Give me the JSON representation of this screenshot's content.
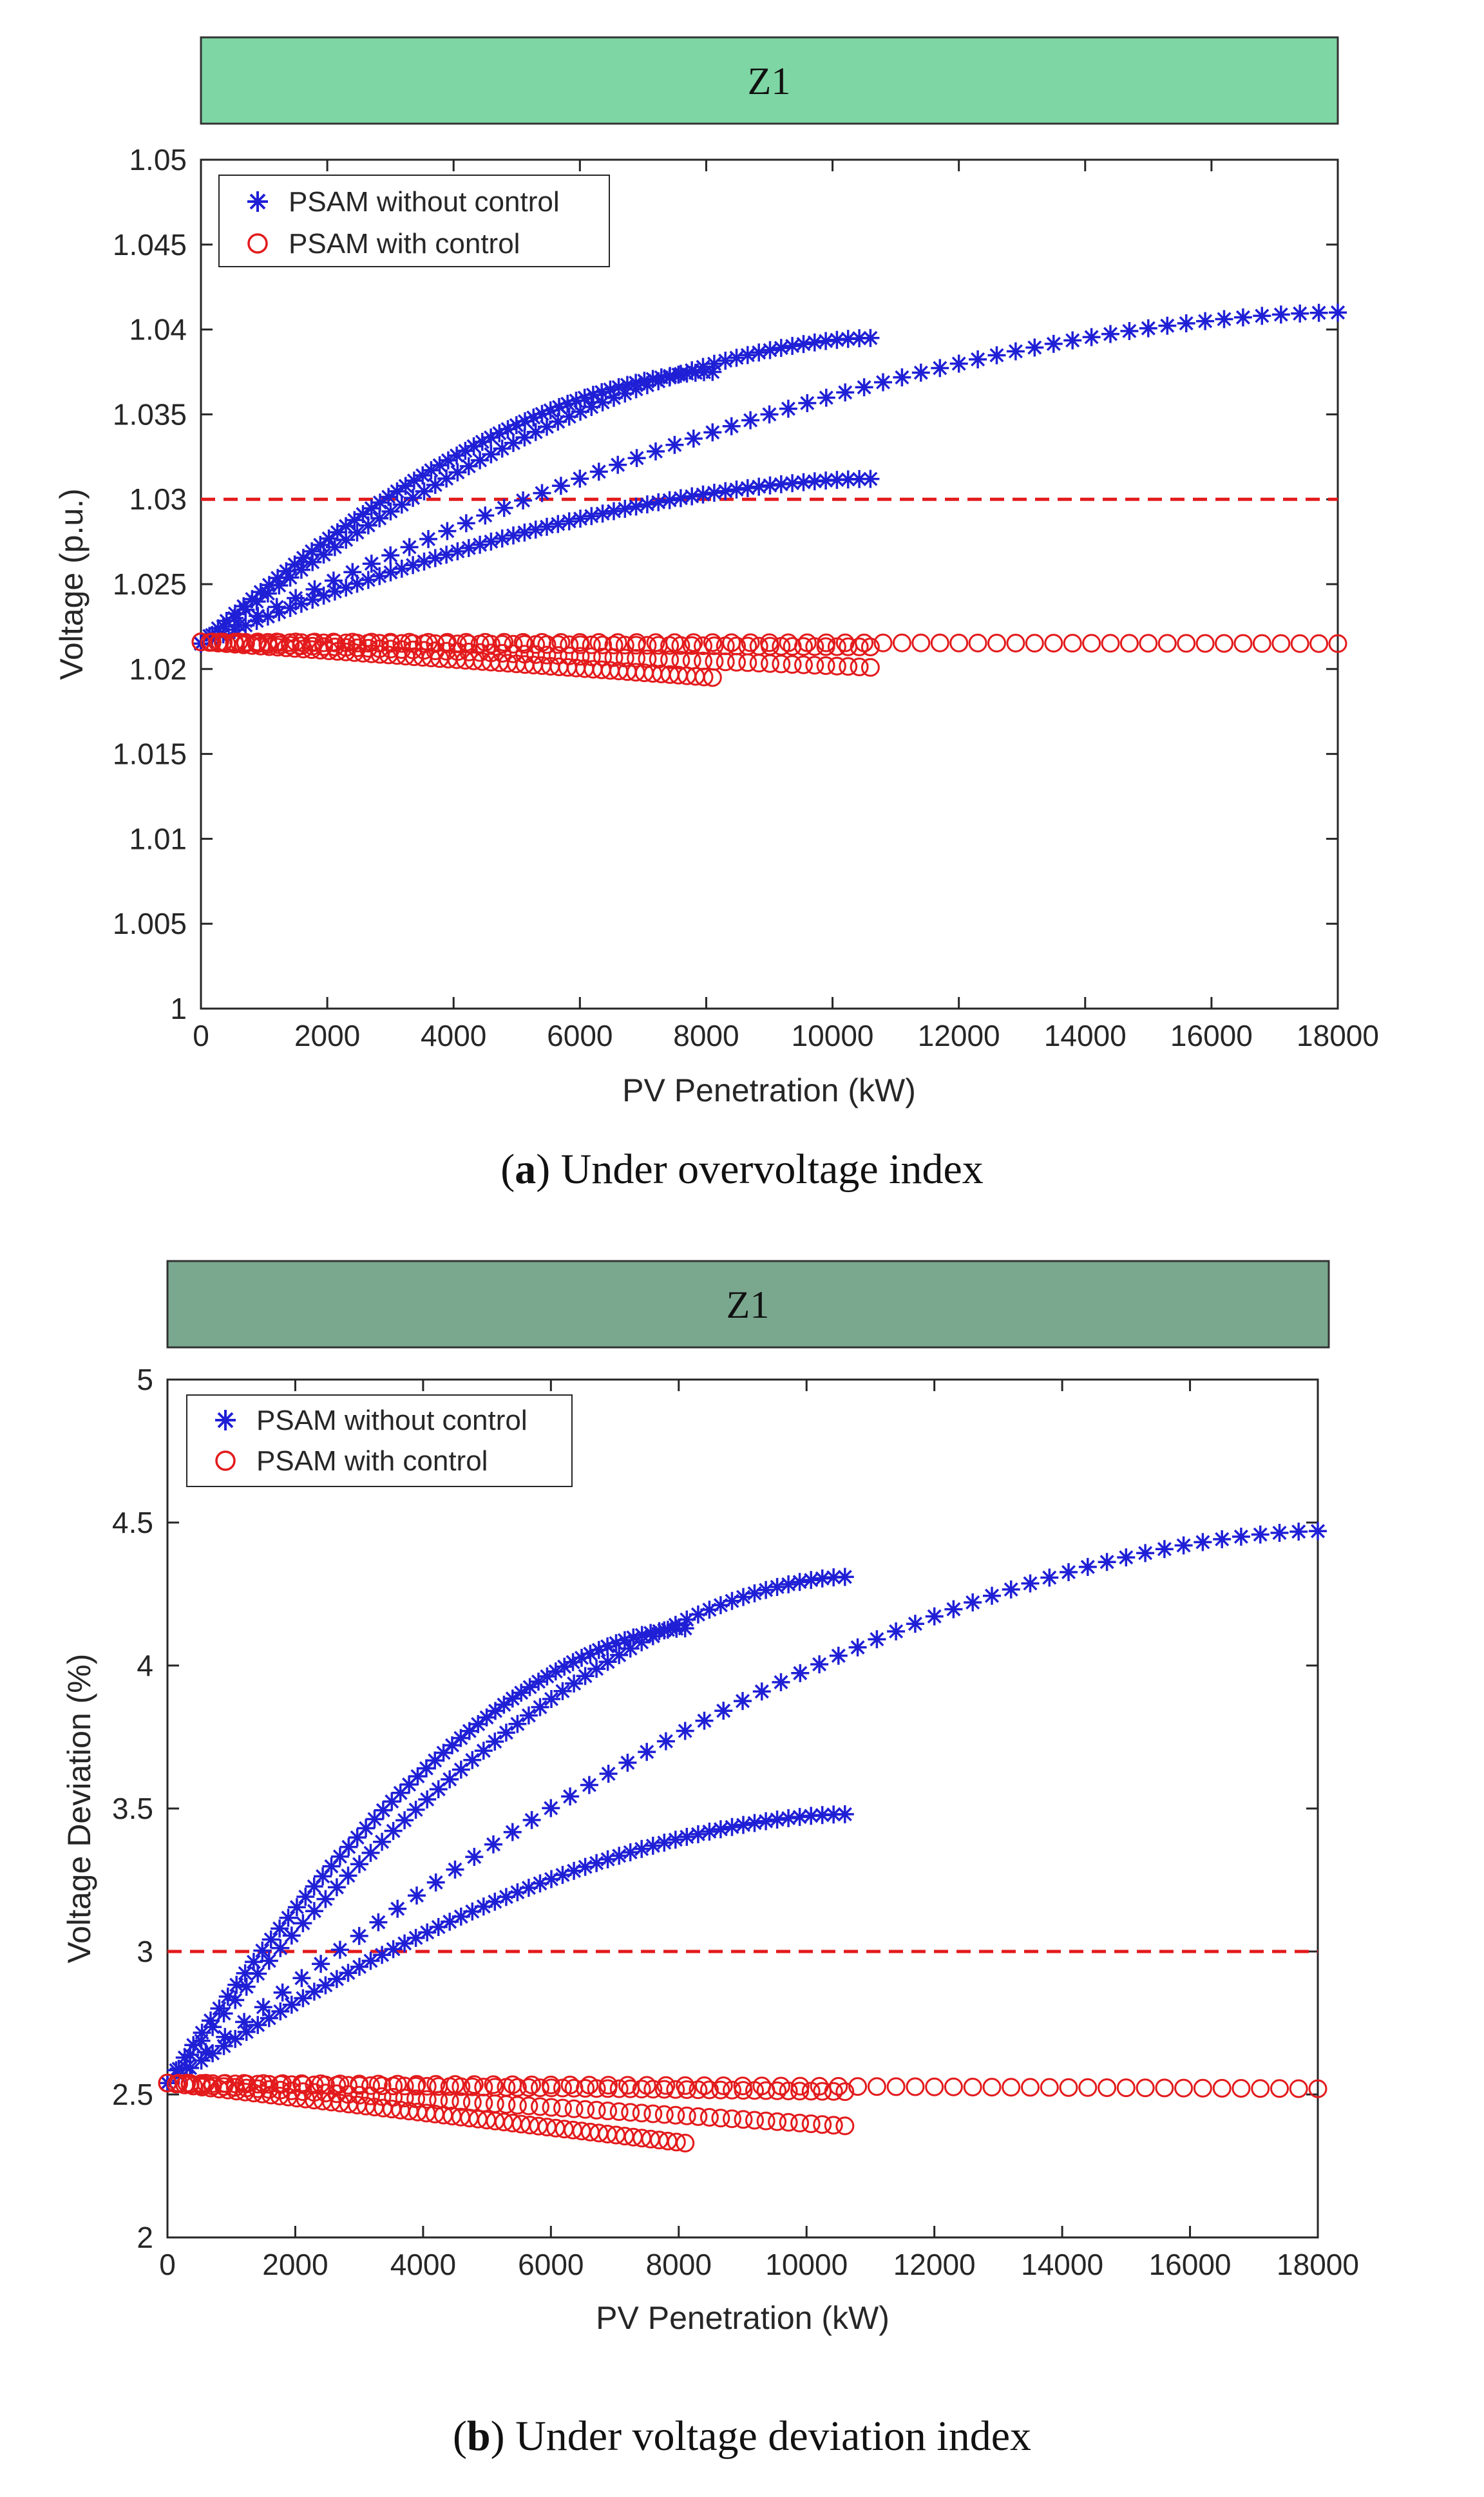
{
  "chart_data": [
    {
      "type": "scatter",
      "panel_label": "a",
      "caption": "Under overvoltage index",
      "strip_title": "Z1",
      "strip_color": "#7ed6a4",
      "xlabel": "PV Penetration (kW)",
      "ylabel": "Voltage (p.u.)",
      "xlim": [
        0,
        18000
      ],
      "ylim": [
        1.0,
        1.05
      ],
      "xticks": [
        "0",
        "2000",
        "4000",
        "6000",
        "8000",
        "10000",
        "12000",
        "14000",
        "16000",
        "18000"
      ],
      "yticks": [
        "1",
        "1.005",
        "1.01",
        "1.015",
        "1.02",
        "1.025",
        "1.03",
        "1.035",
        "1.04",
        "1.045",
        "1.05"
      ],
      "threshold": 1.03,
      "legend": [
        "PSAM without control",
        "PSAM with control"
      ],
      "series": [
        {
          "name": "PSAM without control",
          "marker": "star",
          "color": "#1f1fd6",
          "curves": [
            {
              "max_x": 8100,
              "start": 1.0215,
              "end": 1.0375
            },
            {
              "max_x": 10600,
              "start": 1.0215,
              "end": 1.0395
            },
            {
              "max_x": 18000,
              "start": 1.0215,
              "end": 1.041
            },
            {
              "max_x": 10600,
              "start": 1.0215,
              "end": 1.0312
            }
          ]
        },
        {
          "name": "PSAM with control",
          "marker": "circle",
          "color": "#e31a1c",
          "curves": [
            {
              "max_x": 8100,
              "start": 1.0216,
              "end": 1.0195
            },
            {
              "max_x": 10600,
              "start": 1.0216,
              "end": 1.0201
            },
            {
              "max_x": 18000,
              "start": 1.0216,
              "end": 1.0215
            },
            {
              "max_x": 10600,
              "start": 1.0216,
              "end": 1.0213
            }
          ]
        }
      ]
    },
    {
      "type": "scatter",
      "panel_label": "b",
      "caption": "Under voltage deviation index",
      "strip_title": "Z1",
      "strip_color": "#7aa88f",
      "xlabel": "PV Penetration (kW)",
      "ylabel": "Voltage Deviation (%)",
      "xlim": [
        0,
        18000
      ],
      "ylim": [
        2,
        5
      ],
      "xticks": [
        "0",
        "2000",
        "4000",
        "6000",
        "8000",
        "10000",
        "12000",
        "14000",
        "16000",
        "18000"
      ],
      "yticks": [
        "2",
        "2.5",
        "3",
        "3.5",
        "4",
        "4.5",
        "5"
      ],
      "threshold": 3,
      "legend": [
        "PSAM without control",
        "PSAM with control"
      ],
      "series": [
        {
          "name": "PSAM without control",
          "marker": "star",
          "color": "#1f1fd6",
          "curves": [
            {
              "max_x": 8100,
              "start": 2.54,
              "end": 4.13
            },
            {
              "max_x": 10600,
              "start": 2.54,
              "end": 4.31
            },
            {
              "max_x": 18000,
              "start": 2.54,
              "end": 4.47
            },
            {
              "max_x": 10600,
              "start": 2.54,
              "end": 3.48
            }
          ]
        },
        {
          "name": "PSAM with control",
          "marker": "circle",
          "color": "#e31a1c",
          "curves": [
            {
              "max_x": 8100,
              "start": 2.54,
              "end": 2.33
            },
            {
              "max_x": 10600,
              "start": 2.54,
              "end": 2.39
            },
            {
              "max_x": 18000,
              "start": 2.54,
              "end": 2.52
            },
            {
              "max_x": 10600,
              "start": 2.54,
              "end": 2.51
            }
          ]
        }
      ]
    }
  ]
}
